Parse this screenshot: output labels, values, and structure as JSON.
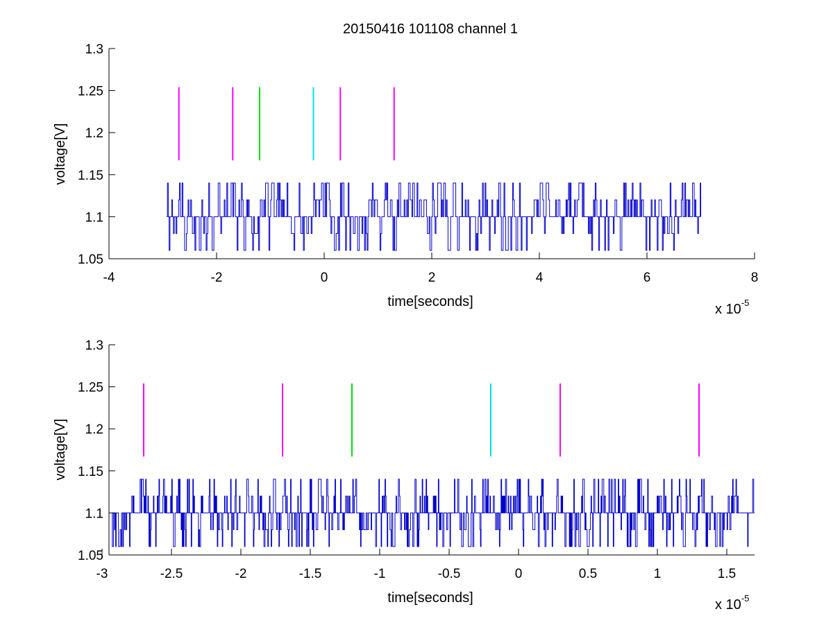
{
  "figure": {
    "title": "20150416 101108 channel 1",
    "background": "#ffffff"
  },
  "chart_data": [
    {
      "type": "line",
      "xlabel": "time[seconds]",
      "ylabel": "voltage[V]",
      "exponent": {
        "base": "x 10",
        "power": "-5"
      },
      "xlim": [
        -4e-05,
        8e-05
      ],
      "ylim": [
        1.05,
        1.3
      ],
      "xticks": [
        -4e-05,
        -2e-05,
        0,
        2e-05,
        4e-05,
        6e-05,
        8e-05
      ],
      "xtick_labels": [
        "-4",
        "-2",
        "0",
        "2",
        "4",
        "6",
        "8"
      ],
      "yticks": [
        1.05,
        1.1,
        1.15,
        1.2,
        1.25,
        1.3
      ],
      "ytick_labels": [
        "1.05",
        "1.1",
        "1.15",
        "1.2",
        "1.25",
        "1.3"
      ],
      "grid": false,
      "series": [
        {
          "style": "step",
          "color": "#0000cc",
          "x_range": [
            -2.93e-05,
            7e-05
          ],
          "levels": [
            1.06,
            1.08,
            1.1,
            1.12,
            1.14
          ],
          "baseline": 1.1,
          "sample_step": 1.6e-07,
          "seed": 17,
          "density": 0.55
        }
      ],
      "markers": [
        {
          "x": -2.7e-05,
          "y": [
            1.167,
            1.254
          ],
          "color": "#ff00ff"
        },
        {
          "x": -1.7e-05,
          "y": [
            1.167,
            1.254
          ],
          "color": "#ff00ff"
        },
        {
          "x": -1.2e-05,
          "y": [
            1.167,
            1.254
          ],
          "color": "#00e000"
        },
        {
          "x": -2e-06,
          "y": [
            1.167,
            1.254
          ],
          "color": "#00e0e0"
        },
        {
          "x": 3e-06,
          "y": [
            1.167,
            1.254
          ],
          "color": "#ff00ff"
        },
        {
          "x": 1.3e-05,
          "y": [
            1.167,
            1.254
          ],
          "color": "#ff00ff"
        }
      ]
    },
    {
      "type": "line",
      "xlabel": "time[seconds]",
      "ylabel": "voltage[V]",
      "exponent": {
        "base": "x 10",
        "power": "-5"
      },
      "xlim": [
        -2.95e-05,
        1.7e-05
      ],
      "ylim": [
        1.05,
        1.3
      ],
      "xticks": [
        -3e-05,
        -2.5e-05,
        -2e-05,
        -1.5e-05,
        -1e-05,
        -5e-06,
        0,
        5e-06,
        1e-05,
        1.5e-05
      ],
      "xtick_labels": [
        "-3",
        "-2.5",
        "-2",
        "-1.5",
        "-1",
        "-0.5",
        "0",
        "0.5",
        "1",
        "1.5"
      ],
      "yticks": [
        1.05,
        1.1,
        1.15,
        1.2,
        1.25,
        1.3
      ],
      "ytick_labels": [
        "1.05",
        "1.1",
        "1.15",
        "1.2",
        "1.25",
        "1.3"
      ],
      "grid": false,
      "series": [
        {
          "style": "step",
          "color": "#0000cc",
          "x_range": [
            -2.93e-05,
            1.7e-05
          ],
          "levels": [
            1.06,
            1.08,
            1.1,
            1.12,
            1.14
          ],
          "baseline": 1.1,
          "sample_step": 4e-08,
          "seed": 41,
          "density": 0.45
        }
      ],
      "markers": [
        {
          "x": -2.7e-05,
          "y": [
            1.167,
            1.254
          ],
          "color": "#ff00ff"
        },
        {
          "x": -1.7e-05,
          "y": [
            1.167,
            1.254
          ],
          "color": "#ff00ff"
        },
        {
          "x": -1.2e-05,
          "y": [
            1.167,
            1.254
          ],
          "color": "#00e000"
        },
        {
          "x": -2e-06,
          "y": [
            1.167,
            1.254
          ],
          "color": "#00e0e0"
        },
        {
          "x": 3e-06,
          "y": [
            1.167,
            1.254
          ],
          "color": "#ff00ff"
        },
        {
          "x": 1.3e-05,
          "y": [
            1.167,
            1.254
          ],
          "color": "#ff00ff"
        }
      ]
    }
  ]
}
